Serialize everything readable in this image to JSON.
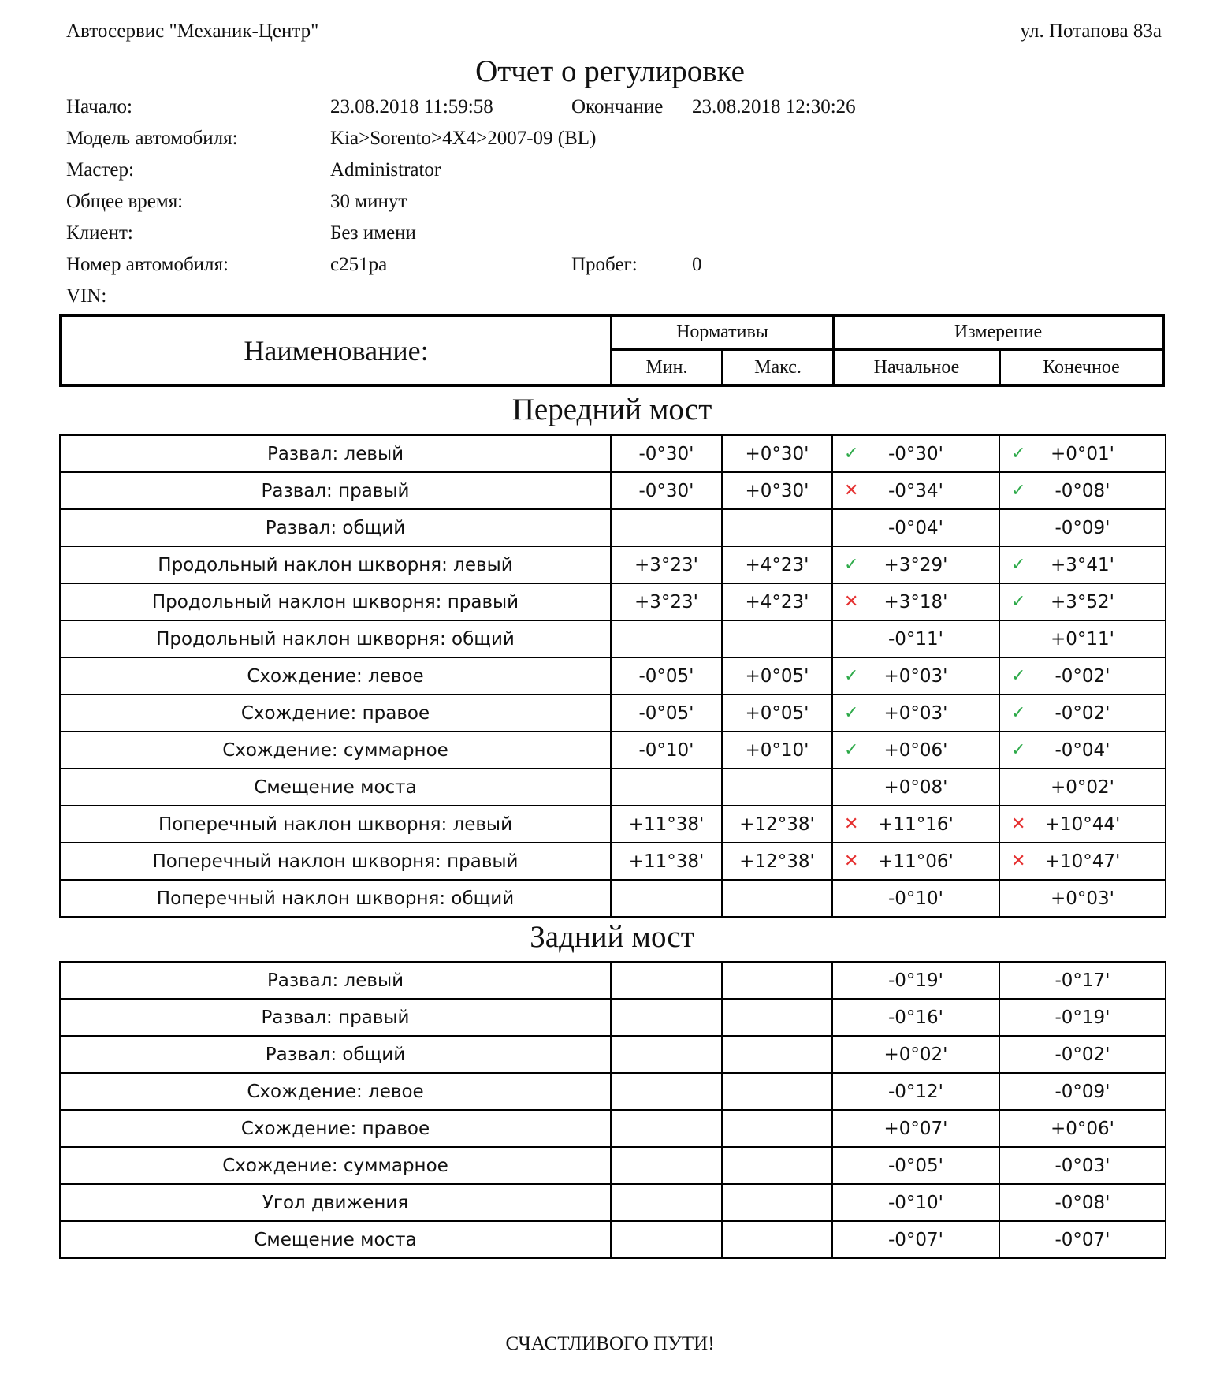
{
  "header": {
    "company": "Автосервис \"Механик-Центр\"",
    "address": "ул. Потапова 83а",
    "title": "Отчет о регулировке"
  },
  "info": {
    "start_label": "Начало:",
    "start_value": "23.08.2018 11:59:58",
    "end_label": "Окончание",
    "end_value": "23.08.2018 12:30:26",
    "model_label": "Модель автомобиля:",
    "model_value": "Kia>Sorento>4X4>2007-09 (BL)",
    "master_label": "Мастер:",
    "master_value": "Administrator",
    "time_label": "Общее время:",
    "time_value": "30 минут",
    "client_label": "Клиент:",
    "client_value": "Без имени",
    "plate_label": "Номер автомобиля:",
    "plate_value": "с251ра",
    "mileage_label": "Пробег:",
    "mileage_value": "0",
    "vin_label": "VIN:"
  },
  "table_header": {
    "name": "Наименование:",
    "norms": "Нормативы",
    "measure": "Измерение",
    "min": "Мин.",
    "max": "Макс.",
    "initial": "Начальное",
    "final": "Конечное"
  },
  "colors": {
    "ok": "#2eaa4a",
    "bad": "#e53030"
  },
  "front": {
    "title": "Передний мост",
    "rows": [
      {
        "name": "Развал: левый",
        "min": "-0°30'",
        "max": "+0°30'",
        "init_mark": "ok",
        "init": "-0°30'",
        "final_mark": "ok",
        "final": "+0°01'"
      },
      {
        "name": "Развал: правый",
        "min": "-0°30'",
        "max": "+0°30'",
        "init_mark": "bad",
        "init": "-0°34'",
        "final_mark": "ok",
        "final": "-0°08'"
      },
      {
        "name": "Развал: общий",
        "min": "",
        "max": "",
        "init_mark": "",
        "init": "-0°04'",
        "final_mark": "",
        "final": "-0°09'"
      },
      {
        "name": "Продольный наклон шкворня: левый",
        "min": "+3°23'",
        "max": "+4°23'",
        "init_mark": "ok",
        "init": "+3°29'",
        "final_mark": "ok",
        "final": "+3°41'"
      },
      {
        "name": "Продольный наклон шкворня: правый",
        "min": "+3°23'",
        "max": "+4°23'",
        "init_mark": "bad",
        "init": "+3°18'",
        "final_mark": "ok",
        "final": "+3°52'"
      },
      {
        "name": "Продольный наклон шкворня: общий",
        "min": "",
        "max": "",
        "init_mark": "",
        "init": "-0°11'",
        "final_mark": "",
        "final": "+0°11'"
      },
      {
        "name": "Схождение: левое",
        "min": "-0°05'",
        "max": "+0°05'",
        "init_mark": "ok",
        "init": "+0°03'",
        "final_mark": "ok",
        "final": "-0°02'"
      },
      {
        "name": "Схождение: правое",
        "min": "-0°05'",
        "max": "+0°05'",
        "init_mark": "ok",
        "init": "+0°03'",
        "final_mark": "ok",
        "final": "-0°02'"
      },
      {
        "name": "Схождение: суммарное",
        "min": "-0°10'",
        "max": "+0°10'",
        "init_mark": "ok",
        "init": "+0°06'",
        "final_mark": "ok",
        "final": "-0°04'"
      },
      {
        "name": "Смещение моста",
        "min": "",
        "max": "",
        "init_mark": "",
        "init": "+0°08'",
        "final_mark": "",
        "final": "+0°02'"
      },
      {
        "name": "Поперечный наклон шкворня: левый",
        "min": "+11°38'",
        "max": "+12°38'",
        "init_mark": "bad",
        "init": "+11°16'",
        "final_mark": "bad",
        "final": "+10°44'"
      },
      {
        "name": "Поперечный наклон шкворня: правый",
        "min": "+11°38'",
        "max": "+12°38'",
        "init_mark": "bad",
        "init": "+11°06'",
        "final_mark": "bad",
        "final": "+10°47'"
      },
      {
        "name": "Поперечный наклон шкворня: общий",
        "min": "",
        "max": "",
        "init_mark": "",
        "init": "-0°10'",
        "final_mark": "",
        "final": "+0°03'"
      }
    ]
  },
  "rear": {
    "title": "Задний мост",
    "rows": [
      {
        "name": "Развал: левый",
        "min": "",
        "max": "",
        "init_mark": "",
        "init": "-0°19'",
        "final_mark": "",
        "final": "-0°17'"
      },
      {
        "name": "Развал: правый",
        "min": "",
        "max": "",
        "init_mark": "",
        "init": "-0°16'",
        "final_mark": "",
        "final": "-0°19'"
      },
      {
        "name": "Развал: общий",
        "min": "",
        "max": "",
        "init_mark": "",
        "init": "+0°02'",
        "final_mark": "",
        "final": "-0°02'"
      },
      {
        "name": "Схождение: левое",
        "min": "",
        "max": "",
        "init_mark": "",
        "init": "-0°12'",
        "final_mark": "",
        "final": "-0°09'"
      },
      {
        "name": "Схождение: правое",
        "min": "",
        "max": "",
        "init_mark": "",
        "init": "+0°07'",
        "final_mark": "",
        "final": "+0°06'"
      },
      {
        "name": "Схождение: суммарное",
        "min": "",
        "max": "",
        "init_mark": "",
        "init": "-0°05'",
        "final_mark": "",
        "final": "-0°03'"
      },
      {
        "name": "Угол движения",
        "min": "",
        "max": "",
        "init_mark": "",
        "init": "-0°10'",
        "final_mark": "",
        "final": "-0°08'"
      },
      {
        "name": "Смещение моста",
        "min": "",
        "max": "",
        "init_mark": "",
        "init": "-0°07'",
        "final_mark": "",
        "final": "-0°07'"
      }
    ]
  },
  "footer": "СЧАСТЛИВОГО ПУТИ!"
}
